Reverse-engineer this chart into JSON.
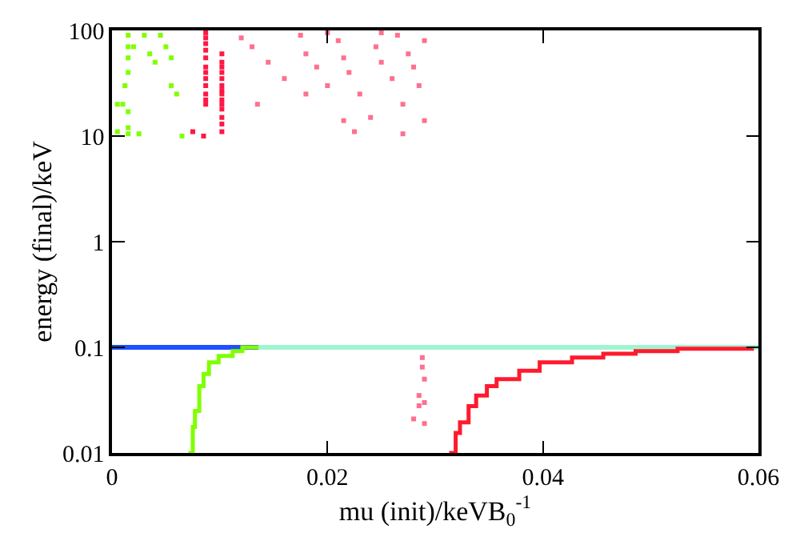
{
  "chart_data": {
    "type": "scatter",
    "xlabel": "mu (init)/keVB$_{0}$$^{-1}$",
    "ylabel": "energy (final)/keV",
    "xlim": [
      0,
      0.06
    ],
    "xticks": [
      0,
      0.02,
      0.04,
      0.06
    ],
    "ylim": [
      0.01,
      100
    ],
    "yticks": [
      0.01,
      0.1,
      1,
      10,
      100
    ],
    "log": "y",
    "marker": "square",
    "series": [
      {
        "type": "line",
        "marker": "none",
        "color": "#1f4fff",
        "x": [
          0,
          0.0136
        ],
        "values": [
          0.1,
          0.1
        ]
      },
      {
        "type": "line",
        "marker": "none",
        "color": "#a0f5d0",
        "x": [
          0.0136,
          0.06
        ],
        "values": [
          0.1,
          0.1
        ]
      },
      {
        "type": "step",
        "marker": "none",
        "color": "#80ff00",
        "x": [
          0.0071,
          0.0075,
          0.0077,
          0.0081,
          0.0085,
          0.009,
          0.0099,
          0.0112,
          0.0121,
          0.0136
        ],
        "values": [
          0.01,
          0.0176,
          0.025,
          0.043,
          0.056,
          0.072,
          0.083,
          0.092,
          0.1,
          0.1
        ]
      },
      {
        "type": "step",
        "marker": "none",
        "color": "#ff1a2e",
        "x": [
          0.0313,
          0.0319,
          0.0323,
          0.0331,
          0.0338,
          0.0348,
          0.0357,
          0.0378,
          0.0397,
          0.0427,
          0.0456,
          0.0486,
          0.0525,
          0.0594
        ],
        "values": [
          0.01,
          0.0155,
          0.0195,
          0.0277,
          0.035,
          0.043,
          0.05,
          0.06,
          0.072,
          0.08,
          0.087,
          0.092,
          0.097,
          0.098
        ]
      },
      {
        "color": "#80ff00",
        "x": [
          0.0015,
          0.0015,
          0.0015,
          0.0015,
          0.0012,
          0.001,
          0.0015,
          0.0015,
          0.0005,
          0.0015,
          0.003,
          0.002,
          0.0035,
          0.004,
          0.0045,
          0.005,
          0.0055,
          0.0055,
          0.006,
          0.0065,
          0.0005,
          0.0025
        ],
        "values": [
          90,
          70,
          55,
          40,
          30,
          20,
          17,
          12,
          11,
          10.5,
          90,
          70,
          60,
          50,
          90,
          70,
          55,
          30,
          25,
          10,
          20,
          10.5
        ]
      },
      {
        "color": "#ff1744",
        "x": [
          0.0087,
          0.0087,
          0.0087,
          0.0087,
          0.0087,
          0.0087,
          0.0087,
          0.0087,
          0.0087,
          0.0087,
          0.0087,
          0.0087,
          0.0102,
          0.0102,
          0.0102,
          0.0102,
          0.0102,
          0.0102,
          0.0102,
          0.0102,
          0.0102,
          0.0102,
          0.0102,
          0.0102,
          0.0102,
          0.0102,
          0.0085,
          0.0075
        ],
        "values": [
          95,
          85,
          75,
          65,
          55,
          45,
          40,
          35,
          30,
          25,
          22,
          20,
          60,
          50,
          45,
          40,
          35,
          30,
          27,
          25,
          22,
          20,
          18,
          15,
          13,
          11,
          10,
          11
        ]
      },
      {
        "color": "#ff6f91",
        "x": [
          0.012,
          0.013,
          0.0145,
          0.016,
          0.0175,
          0.018,
          0.019,
          0.02,
          0.021,
          0.0215,
          0.022,
          0.023,
          0.024,
          0.0245,
          0.025,
          0.026,
          0.0265,
          0.027,
          0.0275,
          0.028,
          0.0285,
          0.029,
          0.029,
          0.0215,
          0.0225,
          0.027,
          0.018,
          0.0135,
          0.02,
          0.025,
          0.0288,
          0.0288,
          0.029,
          0.0285,
          0.0285,
          0.029,
          0.028,
          0.029
        ],
        "values": [
          85,
          70,
          50,
          35,
          90,
          60,
          45,
          30,
          80,
          55,
          40,
          25,
          15,
          70,
          50,
          35,
          90,
          20,
          60,
          45,
          30,
          80,
          14,
          14,
          11,
          10.5,
          25,
          20,
          95,
          95,
          0.08,
          0.065,
          0.05,
          0.035,
          0.028,
          0.03,
          0.021,
          0.019
        ]
      }
    ]
  }
}
